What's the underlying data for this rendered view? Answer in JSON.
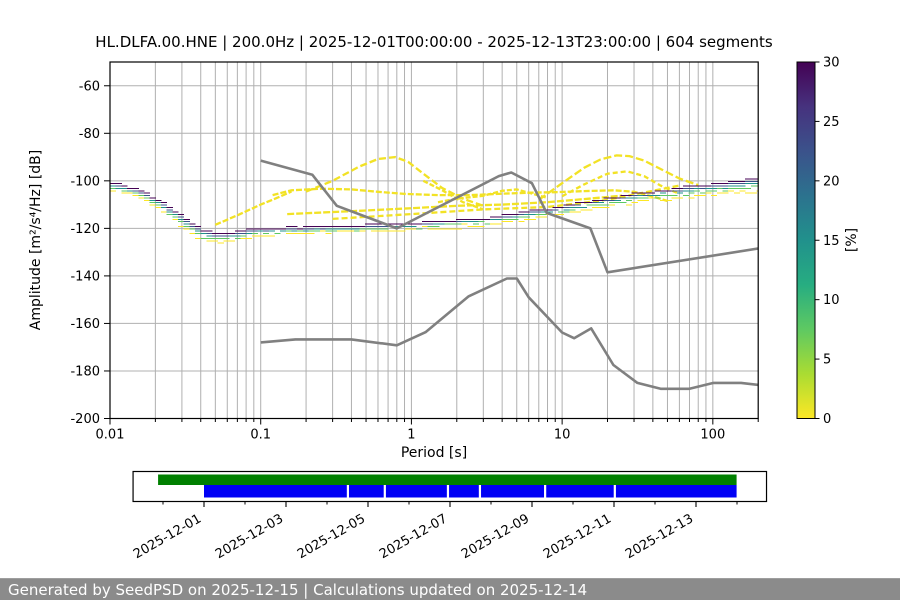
{
  "header": {
    "title": "HL.DLFA.00.HNE | 200.0Hz | 2025-12-01T00:00:00 - 2025-12-13T23:00:00 | 604 segments"
  },
  "chart_data": {
    "type": "heatmap",
    "title": "HL.DLFA.00.HNE | 200.0Hz | 2025-12-01T00:00:00 - 2025-12-13T23:00:00 | 604 segments",
    "xlabel": "Period [s]",
    "ylabel": "Amplitude [m²/s⁴/Hz] [dB]",
    "xscale": "log",
    "xlim": [
      0.01,
      200
    ],
    "ylim": [
      -200,
      -50
    ],
    "xticks": {
      "values": [
        0.01,
        0.1,
        1,
        10,
        100
      ],
      "labels": [
        "0.01",
        "0.1",
        "1",
        "10",
        "100"
      ]
    },
    "yticks": [
      -200,
      -180,
      -160,
      -140,
      -120,
      -100,
      -80,
      -60
    ],
    "grid": true,
    "grid_color": "#b0b0b0",
    "colorbar": {
      "label": "[%]",
      "ticks": [
        0,
        5,
        10,
        15,
        20,
        25,
        30
      ],
      "min": 0,
      "max": 30,
      "cmap": "viridis_r",
      "colors_top_to_bottom": [
        "#440154",
        "#46327e",
        "#3b528b",
        "#2c728e",
        "#21918c",
        "#27ad81",
        "#5ec962",
        "#aadc32",
        "#fde725"
      ]
    },
    "psd_mode_curve": {
      "description": "dominant PSD ridge of the 2D histogram (period s, dB)",
      "points": [
        [
          0.01,
          -100
        ],
        [
          0.013,
          -101.5
        ],
        [
          0.017,
          -104.5
        ],
        [
          0.022,
          -108.5
        ],
        [
          0.03,
          -114.5
        ],
        [
          0.04,
          -119.5
        ],
        [
          0.05,
          -121
        ],
        [
          0.065,
          -120.5
        ],
        [
          0.09,
          -119.3
        ],
        [
          0.15,
          -118.7
        ],
        [
          0.3,
          -118.2
        ],
        [
          0.7,
          -117.3
        ],
        [
          1.5,
          -116.3
        ],
        [
          3,
          -114.8
        ],
        [
          5,
          -112.8
        ],
        [
          8,
          -110.6
        ],
        [
          12,
          -108.6
        ],
        [
          20,
          -106.2
        ],
        [
          35,
          -103.6
        ],
        [
          60,
          -101.6
        ],
        [
          100,
          -99.9
        ],
        [
          150,
          -98.6
        ],
        [
          200,
          -97.4
        ]
      ]
    },
    "band_layers": [
      {
        "pct": "0-3",
        "color": "#fde725",
        "hw_mul": 3.2,
        "hw_add": 0.8,
        "below_factor": 1.0,
        "jit": 1.4
      },
      {
        "pct": "3-8",
        "color": "#5ec962",
        "hw_mul": 2.4,
        "hw_add": 0.55,
        "below_factor": 0.75,
        "jit": 1.2
      },
      {
        "pct": "8-15",
        "color": "#21918c",
        "hw_mul": 1.75,
        "hw_add": 0.35,
        "below_factor": 0.4,
        "jit": 1.0
      },
      {
        "pct": "15-25",
        "color": "#3b528b",
        "hw_mul": 1.2,
        "hw_add": 0.25,
        "below_factor": 0.15,
        "jit": 0.7
      },
      {
        "pct": "25-30",
        "color": "#440154",
        "hw_mul": 0.7,
        "hw_add": 0.15,
        "below_factor": 0.0,
        "jit": 0.5
      }
    ],
    "band_width_profile": [
      [
        -2,
        0.85
      ],
      [
        -1.7,
        1.0
      ],
      [
        -1.45,
        1.55
      ],
      [
        -1.2,
        1.0
      ],
      [
        -1.0,
        0.8
      ],
      [
        0,
        0.72
      ],
      [
        0.7,
        0.8
      ],
      [
        1.0,
        0.9
      ],
      [
        1.5,
        1.1
      ],
      [
        2.0,
        1.45
      ],
      [
        2.301,
        1.65
      ]
    ],
    "outlier_curves": {
      "color": "#f2e225",
      "curves": [
        {
          "dash": "7 3",
          "points": [
            [
              0.2,
              -104.5
            ],
            [
              0.3,
              -100
            ],
            [
              0.45,
              -94
            ],
            [
              0.6,
              -90.8
            ],
            [
              0.78,
              -90
            ],
            [
              0.95,
              -92
            ],
            [
              1.2,
              -97
            ],
            [
              1.6,
              -103
            ],
            [
              2.2,
              -107.5
            ],
            [
              3,
              -110.5
            ]
          ]
        },
        {
          "dash": "6 2",
          "points": [
            [
              0.12,
              -106
            ],
            [
              0.16,
              -104
            ],
            [
              0.25,
              -103.3
            ],
            [
              0.4,
              -103.6
            ],
            [
              0.6,
              -104.6
            ],
            [
              0.9,
              -105.5
            ],
            [
              1.5,
              -106
            ],
            [
              2.5,
              -106
            ],
            [
              4,
              -105.4
            ],
            [
              6,
              -105
            ],
            [
              9,
              -104.8
            ],
            [
              14,
              -104.3
            ],
            [
              22,
              -104
            ],
            [
              30,
              -104.6
            ],
            [
              40,
              -106.6
            ],
            [
              50,
              -108.5
            ]
          ]
        },
        {
          "dash": "8 3",
          "points": [
            [
              7,
              -108
            ],
            [
              10,
              -101
            ],
            [
              14,
              -94.5
            ],
            [
              18,
              -91
            ],
            [
              23,
              -89.3
            ],
            [
              28,
              -89.6
            ],
            [
              35,
              -91.5
            ],
            [
              45,
              -95
            ],
            [
              60,
              -99
            ],
            [
              80,
              -101.8
            ]
          ]
        },
        {
          "dash": "5 3",
          "points": [
            [
              10,
              -106.5
            ],
            [
              14,
              -101.5
            ],
            [
              20,
              -97
            ],
            [
              27,
              -96
            ],
            [
              35,
              -98
            ],
            [
              45,
              -102
            ],
            [
              60,
              -105.5
            ]
          ]
        },
        {
          "dash": "6 2",
          "points": [
            [
              0.05,
              -118.5
            ],
            [
              0.07,
              -114.5
            ],
            [
              0.1,
              -110
            ],
            [
              0.13,
              -107
            ],
            [
              0.16,
              -104.5
            ]
          ]
        },
        {
          "dash": "5 2",
          "points": [
            [
              1.5,
              -109
            ],
            [
              2,
              -107.5
            ],
            [
              3,
              -106.3
            ],
            [
              4,
              -104.2
            ],
            [
              5,
              -103.6
            ],
            [
              6,
              -105
            ],
            [
              8,
              -107.2
            ]
          ]
        },
        {
          "dash": "7 2",
          "points": [
            [
              0.15,
              -114
            ],
            [
              0.5,
              -112.5
            ],
            [
              1,
              -111.5
            ],
            [
              2,
              -110.5
            ],
            [
              4,
              -110
            ],
            [
              8,
              -109
            ],
            [
              15,
              -107.5
            ],
            [
              25,
              -106.2
            ]
          ]
        },
        {
          "dash": "6 3",
          "points": [
            [
              0.3,
              -116
            ],
            [
              1,
              -114
            ],
            [
              3,
              -112
            ],
            [
              8,
              -111
            ],
            [
              20,
              -108
            ],
            [
              40,
              -104.2
            ],
            [
              60,
              -102
            ]
          ]
        },
        {
          "dash": "5 2",
          "points": [
            [
              1.2,
              -100
            ],
            [
              1.6,
              -104
            ],
            [
              2.2,
              -109
            ],
            [
              3,
              -112
            ]
          ]
        }
      ]
    },
    "noise_models": {
      "color": "#808080",
      "nhnm": [
        [
          0.1,
          -91.5
        ],
        [
          0.22,
          -97.4
        ],
        [
          0.32,
          -110.5
        ],
        [
          0.8,
          -120.0
        ],
        [
          3.8,
          -98.0
        ],
        [
          4.6,
          -96.5
        ],
        [
          6.3,
          -101.0
        ],
        [
          7.9,
          -113.5
        ],
        [
          15.4,
          -120.0
        ],
        [
          20.0,
          -138.5
        ],
        [
          354.8,
          -126.0
        ]
      ],
      "nlnm": [
        [
          0.1,
          -168.0
        ],
        [
          0.17,
          -166.7
        ],
        [
          0.4,
          -166.7
        ],
        [
          0.8,
          -169.2
        ],
        [
          1.24,
          -163.7
        ],
        [
          2.4,
          -148.6
        ],
        [
          4.3,
          -141.1
        ],
        [
          5.0,
          -141.1
        ],
        [
          6.0,
          -149.0
        ],
        [
          10.0,
          -163.8
        ],
        [
          12.0,
          -166.2
        ],
        [
          15.6,
          -162.1
        ],
        [
          21.9,
          -177.5
        ],
        [
          31.6,
          -185.0
        ],
        [
          45.0,
          -187.5
        ],
        [
          70.0,
          -187.5
        ],
        [
          101.0,
          -185.0
        ],
        [
          154.0,
          -185.0
        ],
        [
          328.0,
          -187.5
        ]
      ]
    }
  },
  "timeline": {
    "tick_labels": [
      "2025-12-01",
      "2025-12-03",
      "2025-12-05",
      "2025-12-07",
      "2025-12-09",
      "2025-12-11",
      "2025-12-13"
    ],
    "tick_days": [
      0,
      2,
      4,
      6,
      8,
      10,
      12
    ],
    "minor_tick_days": [
      -1,
      1,
      3,
      5,
      7,
      9,
      11,
      13
    ],
    "axis_start_day": -1.73,
    "axis_end_day": 13.72,
    "green_bar": {
      "color": "#008000",
      "start_day": -1.12,
      "end_day": 12.99
    },
    "blue_bar": {
      "color": "#0000f5",
      "start_day": 0.0,
      "end_day": 12.99
    },
    "blue_gap_days": [
      3.51,
      4.41,
      5.95,
      6.73,
      8.32,
      10.02
    ]
  },
  "footer": {
    "text": "Generated by SeedPSD on 2025-12-15 | Calculations updated on 2025-12-14"
  }
}
